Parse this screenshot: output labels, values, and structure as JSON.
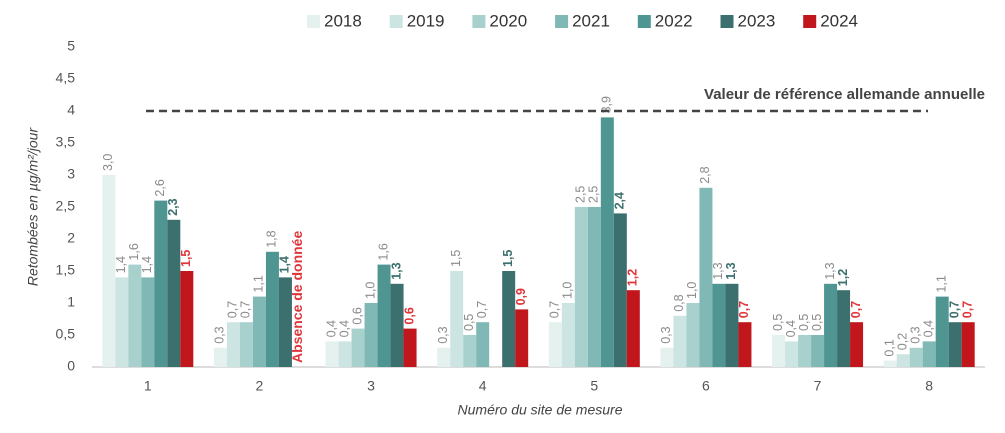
{
  "chart_data": {
    "type": "bar",
    "categories": [
      "1",
      "2",
      "3",
      "4",
      "5",
      "6",
      "7",
      "8"
    ],
    "series": [
      {
        "name": "2018",
        "color": "#e4f1ef",
        "values": [
          3.0,
          0.3,
          0.4,
          0.3,
          0.7,
          0.3,
          0.5,
          0.1
        ],
        "value_labels": [
          "3,0",
          "0,3",
          "0,4",
          "0,3",
          "0,7",
          "0,3",
          "0,5",
          "0,1"
        ]
      },
      {
        "name": "2019",
        "color": "#cde5e2",
        "values": [
          1.4,
          0.7,
          0.4,
          1.5,
          1.0,
          0.8,
          0.4,
          0.2
        ],
        "value_labels": [
          "1,4",
          "0,7",
          "0,4",
          "1,5",
          "1,0",
          "0,8",
          "0,4",
          "0,2"
        ]
      },
      {
        "name": "2020",
        "color": "#a8d1ce",
        "values": [
          1.6,
          0.7,
          0.6,
          0.5,
          2.5,
          1.0,
          0.5,
          0.3
        ],
        "value_labels": [
          "1,6",
          "0,7",
          "0,6",
          "0,5",
          "2,5",
          "1,0",
          "0,5",
          "0,3"
        ]
      },
      {
        "name": "2021",
        "color": "#7fb8b5",
        "values": [
          1.4,
          1.1,
          1.0,
          0.7,
          2.5,
          2.8,
          0.5,
          0.4
        ],
        "value_labels": [
          "1,4",
          "1,1",
          "1,0",
          "0,7",
          "2,5",
          "2,8",
          "0,5",
          "0,4"
        ]
      },
      {
        "name": "2022",
        "color": "#4f9693",
        "values": [
          2.6,
          1.8,
          1.6,
          null,
          3.9,
          1.3,
          1.3,
          1.1
        ],
        "value_labels": [
          "2,6",
          "1,8",
          "1,6",
          null,
          "3,9",
          "1,3",
          "1,3",
          "1,1"
        ]
      },
      {
        "name": "2023",
        "color": "#3b706e",
        "values": [
          2.3,
          1.4,
          1.3,
          1.5,
          2.4,
          1.3,
          1.2,
          0.7
        ],
        "value_labels": [
          "2,3",
          "1,4",
          "1,3",
          "1,5",
          "2,4",
          "1,3",
          "1,2",
          "0,7"
        ]
      },
      {
        "name": "2024",
        "color": "#c0161c",
        "values": [
          1.5,
          null,
          0.6,
          0.9,
          1.2,
          0.7,
          0.7,
          0.7
        ],
        "value_labels": [
          "1,5",
          null,
          "0,6",
          "0,9",
          "1,2",
          "0,7",
          "0,7",
          "0,7"
        ]
      }
    ],
    "x_label": "Numéro du site de mesure",
    "y_label": "Retombées en µg/m²/jour",
    "ylim": [
      0,
      5
    ],
    "yticks": [
      0,
      {
        "value": 0.5,
        "label": "0,5"
      },
      1,
      {
        "value": 1.5,
        "label": "1,5"
      },
      2,
      {
        "value": 2.5,
        "label": "2,5"
      },
      3,
      {
        "value": 3.5,
        "label": "3,5"
      },
      4,
      {
        "value": 4.5,
        "label": "4,5"
      },
      5
    ],
    "reference_line": {
      "value": 4,
      "label": "Valeur de référence allemande annuelle"
    },
    "annotation": {
      "text": "Absence de donnée",
      "category": "2",
      "series": "2024"
    },
    "legend": "top",
    "grid": false
  }
}
